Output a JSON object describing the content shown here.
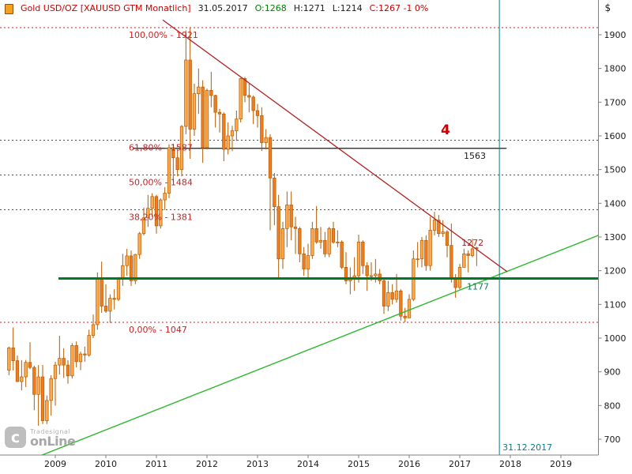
{
  "header": {
    "symbol": "Gold USD/OZ [XAUUSD GTM  Monatlich]",
    "date": "31.05.2017",
    "open": "O:1268",
    "high": "H:1271",
    "low": "L:1214",
    "close": "C:1267 -1 0%"
  },
  "logo": {
    "brand_small": "Tradesignal",
    "brand_large": "onLine",
    "icon_letter": "c"
  },
  "colors": {
    "header_symbol": "#cc0000",
    "header_open": "#008000",
    "header_close": "#cc0000",
    "text": "#1a1a1a",
    "axis": "#808080",
    "candle_up": "#ffa94d",
    "candle_down": "#ef7d1d",
    "candle_border": "#b35a00",
    "fib": "#cc2222",
    "trend_down": "#b22222",
    "trend_up": "#2db82d",
    "support": "#007a26",
    "support_label": "#0c7b62",
    "resistance": "#1a1a1a",
    "vertical": "#0e7c8a",
    "wave": "#cc0000"
  },
  "chart_data": {
    "type": "candlestick",
    "title": "Gold USD/OZ [XAUUSD GTM] Monatlich (monthly)",
    "interval": "monthly",
    "start_month": "2008-02",
    "end_month": "2017-05",
    "ylabel": "$",
    "ylim": [
      650,
      1950
    ],
    "grid": false,
    "price_ticks": [
      1900,
      1800,
      1700,
      1600,
      1500,
      1400,
      1300,
      1200,
      1100,
      1000,
      900,
      800,
      700
    ],
    "year_labels": [
      "2009",
      "2010",
      "2011",
      "2012",
      "2013",
      "2014",
      "2015",
      "2016",
      "2017",
      "2018",
      "2019"
    ],
    "t_unit": "months since 2008-02",
    "candles": [
      [
        905,
        975,
        890,
        971
      ],
      [
        971,
        1032,
        904,
        933
      ],
      [
        933,
        948,
        870,
        871
      ],
      [
        871,
        935,
        845,
        885
      ],
      [
        885,
        935,
        855,
        928
      ],
      [
        928,
        988,
        908,
        913
      ],
      [
        913,
        918,
        786,
        833
      ],
      [
        833,
        920,
        740,
        885
      ],
      [
        885,
        920,
        745,
        755
      ],
      [
        755,
        830,
        745,
        815
      ],
      [
        815,
        890,
        770,
        880
      ],
      [
        880,
        930,
        800,
        920
      ],
      [
        920,
        1007,
        892,
        940
      ],
      [
        940,
        970,
        882,
        920
      ],
      [
        920,
        935,
        865,
        888
      ],
      [
        888,
        985,
        880,
        978
      ],
      [
        978,
        990,
        913,
        930
      ],
      [
        930,
        960,
        905,
        953
      ],
      [
        953,
        975,
        930,
        950
      ],
      [
        950,
        1025,
        945,
        1008
      ],
      [
        1008,
        1070,
        1000,
        1040
      ],
      [
        1040,
        1195,
        1025,
        1175
      ],
      [
        1175,
        1227,
        1075,
        1095
      ],
      [
        1095,
        1160,
        1075,
        1080
      ],
      [
        1080,
        1130,
        1045,
        1118
      ],
      [
        1118,
        1145,
        1085,
        1115
      ],
      [
        1115,
        1180,
        1110,
        1180
      ],
      [
        1180,
        1250,
        1155,
        1215
      ],
      [
        1215,
        1265,
        1185,
        1244
      ],
      [
        1244,
        1260,
        1155,
        1170
      ],
      [
        1170,
        1250,
        1160,
        1248
      ],
      [
        1248,
        1315,
        1235,
        1310
      ],
      [
        1310,
        1387,
        1305,
        1357
      ],
      [
        1357,
        1425,
        1330,
        1385
      ],
      [
        1385,
        1430,
        1360,
        1420
      ],
      [
        1420,
        1425,
        1310,
        1333
      ],
      [
        1333,
        1415,
        1325,
        1410
      ],
      [
        1410,
        1448,
        1380,
        1430
      ],
      [
        1430,
        1575,
        1415,
        1565
      ],
      [
        1565,
        1577,
        1463,
        1535
      ],
      [
        1535,
        1560,
        1480,
        1500
      ],
      [
        1500,
        1632,
        1480,
        1628
      ],
      [
        1628,
        1913,
        1605,
        1825
      ],
      [
        1825,
        1921,
        1532,
        1620
      ],
      [
        1620,
        1755,
        1600,
        1725
      ],
      [
        1725,
        1800,
        1665,
        1745
      ],
      [
        1745,
        1765,
        1520,
        1565
      ],
      [
        1565,
        1740,
        1560,
        1735
      ],
      [
        1735,
        1790,
        1685,
        1720
      ],
      [
        1720,
        1722,
        1625,
        1670
      ],
      [
        1670,
        1680,
        1610,
        1665
      ],
      [
        1665,
        1670,
        1525,
        1560
      ],
      [
        1560,
        1640,
        1545,
        1600
      ],
      [
        1600,
        1630,
        1555,
        1615
      ],
      [
        1615,
        1675,
        1585,
        1650
      ],
      [
        1650,
        1772,
        1640,
        1770
      ],
      [
        1770,
        1775,
        1700,
        1720
      ],
      [
        1720,
        1755,
        1670,
        1715
      ],
      [
        1715,
        1720,
        1635,
        1675
      ],
      [
        1675,
        1695,
        1625,
        1660
      ],
      [
        1660,
        1685,
        1555,
        1580
      ],
      [
        1580,
        1620,
        1560,
        1595
      ],
      [
        1595,
        1605,
        1320,
        1475
      ],
      [
        1475,
        1490,
        1335,
        1390
      ],
      [
        1390,
        1425,
        1180,
        1235
      ],
      [
        1235,
        1345,
        1205,
        1325
      ],
      [
        1325,
        1435,
        1270,
        1395
      ],
      [
        1395,
        1435,
        1290,
        1330
      ],
      [
        1330,
        1360,
        1250,
        1325
      ],
      [
        1325,
        1330,
        1225,
        1250
      ],
      [
        1250,
        1270,
        1185,
        1205
      ],
      [
        1205,
        1280,
        1180,
        1245
      ],
      [
        1245,
        1345,
        1235,
        1325
      ],
      [
        1325,
        1392,
        1280,
        1285
      ],
      [
        1285,
        1330,
        1265,
        1290
      ],
      [
        1290,
        1315,
        1240,
        1250
      ],
      [
        1250,
        1330,
        1240,
        1325
      ],
      [
        1325,
        1345,
        1280,
        1285
      ],
      [
        1285,
        1320,
        1270,
        1285
      ],
      [
        1285,
        1290,
        1205,
        1210
      ],
      [
        1210,
        1255,
        1160,
        1170
      ],
      [
        1170,
        1210,
        1130,
        1175
      ],
      [
        1175,
        1240,
        1140,
        1185
      ],
      [
        1185,
        1307,
        1165,
        1285
      ],
      [
        1285,
        1290,
        1190,
        1215
      ],
      [
        1215,
        1225,
        1140,
        1185
      ],
      [
        1185,
        1225,
        1170,
        1185
      ],
      [
        1185,
        1235,
        1165,
        1190
      ],
      [
        1190,
        1205,
        1160,
        1170
      ],
      [
        1170,
        1175,
        1072,
        1095
      ],
      [
        1095,
        1170,
        1080,
        1135
      ],
      [
        1135,
        1160,
        1100,
        1115
      ],
      [
        1115,
        1190,
        1105,
        1140
      ],
      [
        1140,
        1145,
        1052,
        1065
      ],
      [
        1065,
        1090,
        1047,
        1060
      ],
      [
        1060,
        1130,
        1060,
        1115
      ],
      [
        1115,
        1260,
        1110,
        1235
      ],
      [
        1235,
        1285,
        1210,
        1235
      ],
      [
        1235,
        1300,
        1210,
        1290
      ],
      [
        1290,
        1305,
        1200,
        1215
      ],
      [
        1215,
        1360,
        1200,
        1320
      ],
      [
        1320,
        1375,
        1305,
        1350
      ],
      [
        1350,
        1365,
        1300,
        1310
      ],
      [
        1310,
        1350,
        1300,
        1315
      ],
      [
        1315,
        1320,
        1240,
        1275
      ],
      [
        1275,
        1340,
        1165,
        1175
      ],
      [
        1175,
        1190,
        1120,
        1150
      ],
      [
        1150,
        1220,
        1145,
        1210
      ],
      [
        1210,
        1265,
        1210,
        1250
      ],
      [
        1250,
        1260,
        1195,
        1245
      ],
      [
        1245,
        1295,
        1240,
        1265
      ],
      [
        1268,
        1271,
        1214,
        1267
      ]
    ],
    "overlays": {
      "fibonacci": [
        {
          "label": "100,00% - 1921",
          "pct": "100,00%",
          "price": 1921
        },
        {
          "label": "61,80% - 1587",
          "pct": "61,80%",
          "price": 1587
        },
        {
          "label": "50,00% - 1484",
          "pct": "50,00%",
          "price": 1484
        },
        {
          "label": "38,20% - 1381",
          "pct": "38,20%",
          "price": 1381
        },
        {
          "label": "0,00% - 1047",
          "pct": "0,00%",
          "price": 1047
        }
      ],
      "resistance_line": {
        "label": "1563",
        "price": 1563,
        "t1": 29.4,
        "t2": 118.1
      },
      "support_line": {
        "label": "1177",
        "price": 1177,
        "t1": 11.75,
        "t2": 139.9
      },
      "trendline_down": {
        "label": "1272",
        "t1": 36.5,
        "p1": 1944,
        "t2": 118.25,
        "p2": 1197,
        "label_t": 107.4,
        "label_p": 1274
      },
      "trendline_up": {
        "t1": -2.1,
        "p1": 604,
        "t2": 139.9,
        "p2": 1305
      },
      "vertical_line": {
        "label": "31.12.2017",
        "t": 116.4
      },
      "wave_label": {
        "text": "4",
        "t": 102.5,
        "price": 1605
      }
    }
  }
}
